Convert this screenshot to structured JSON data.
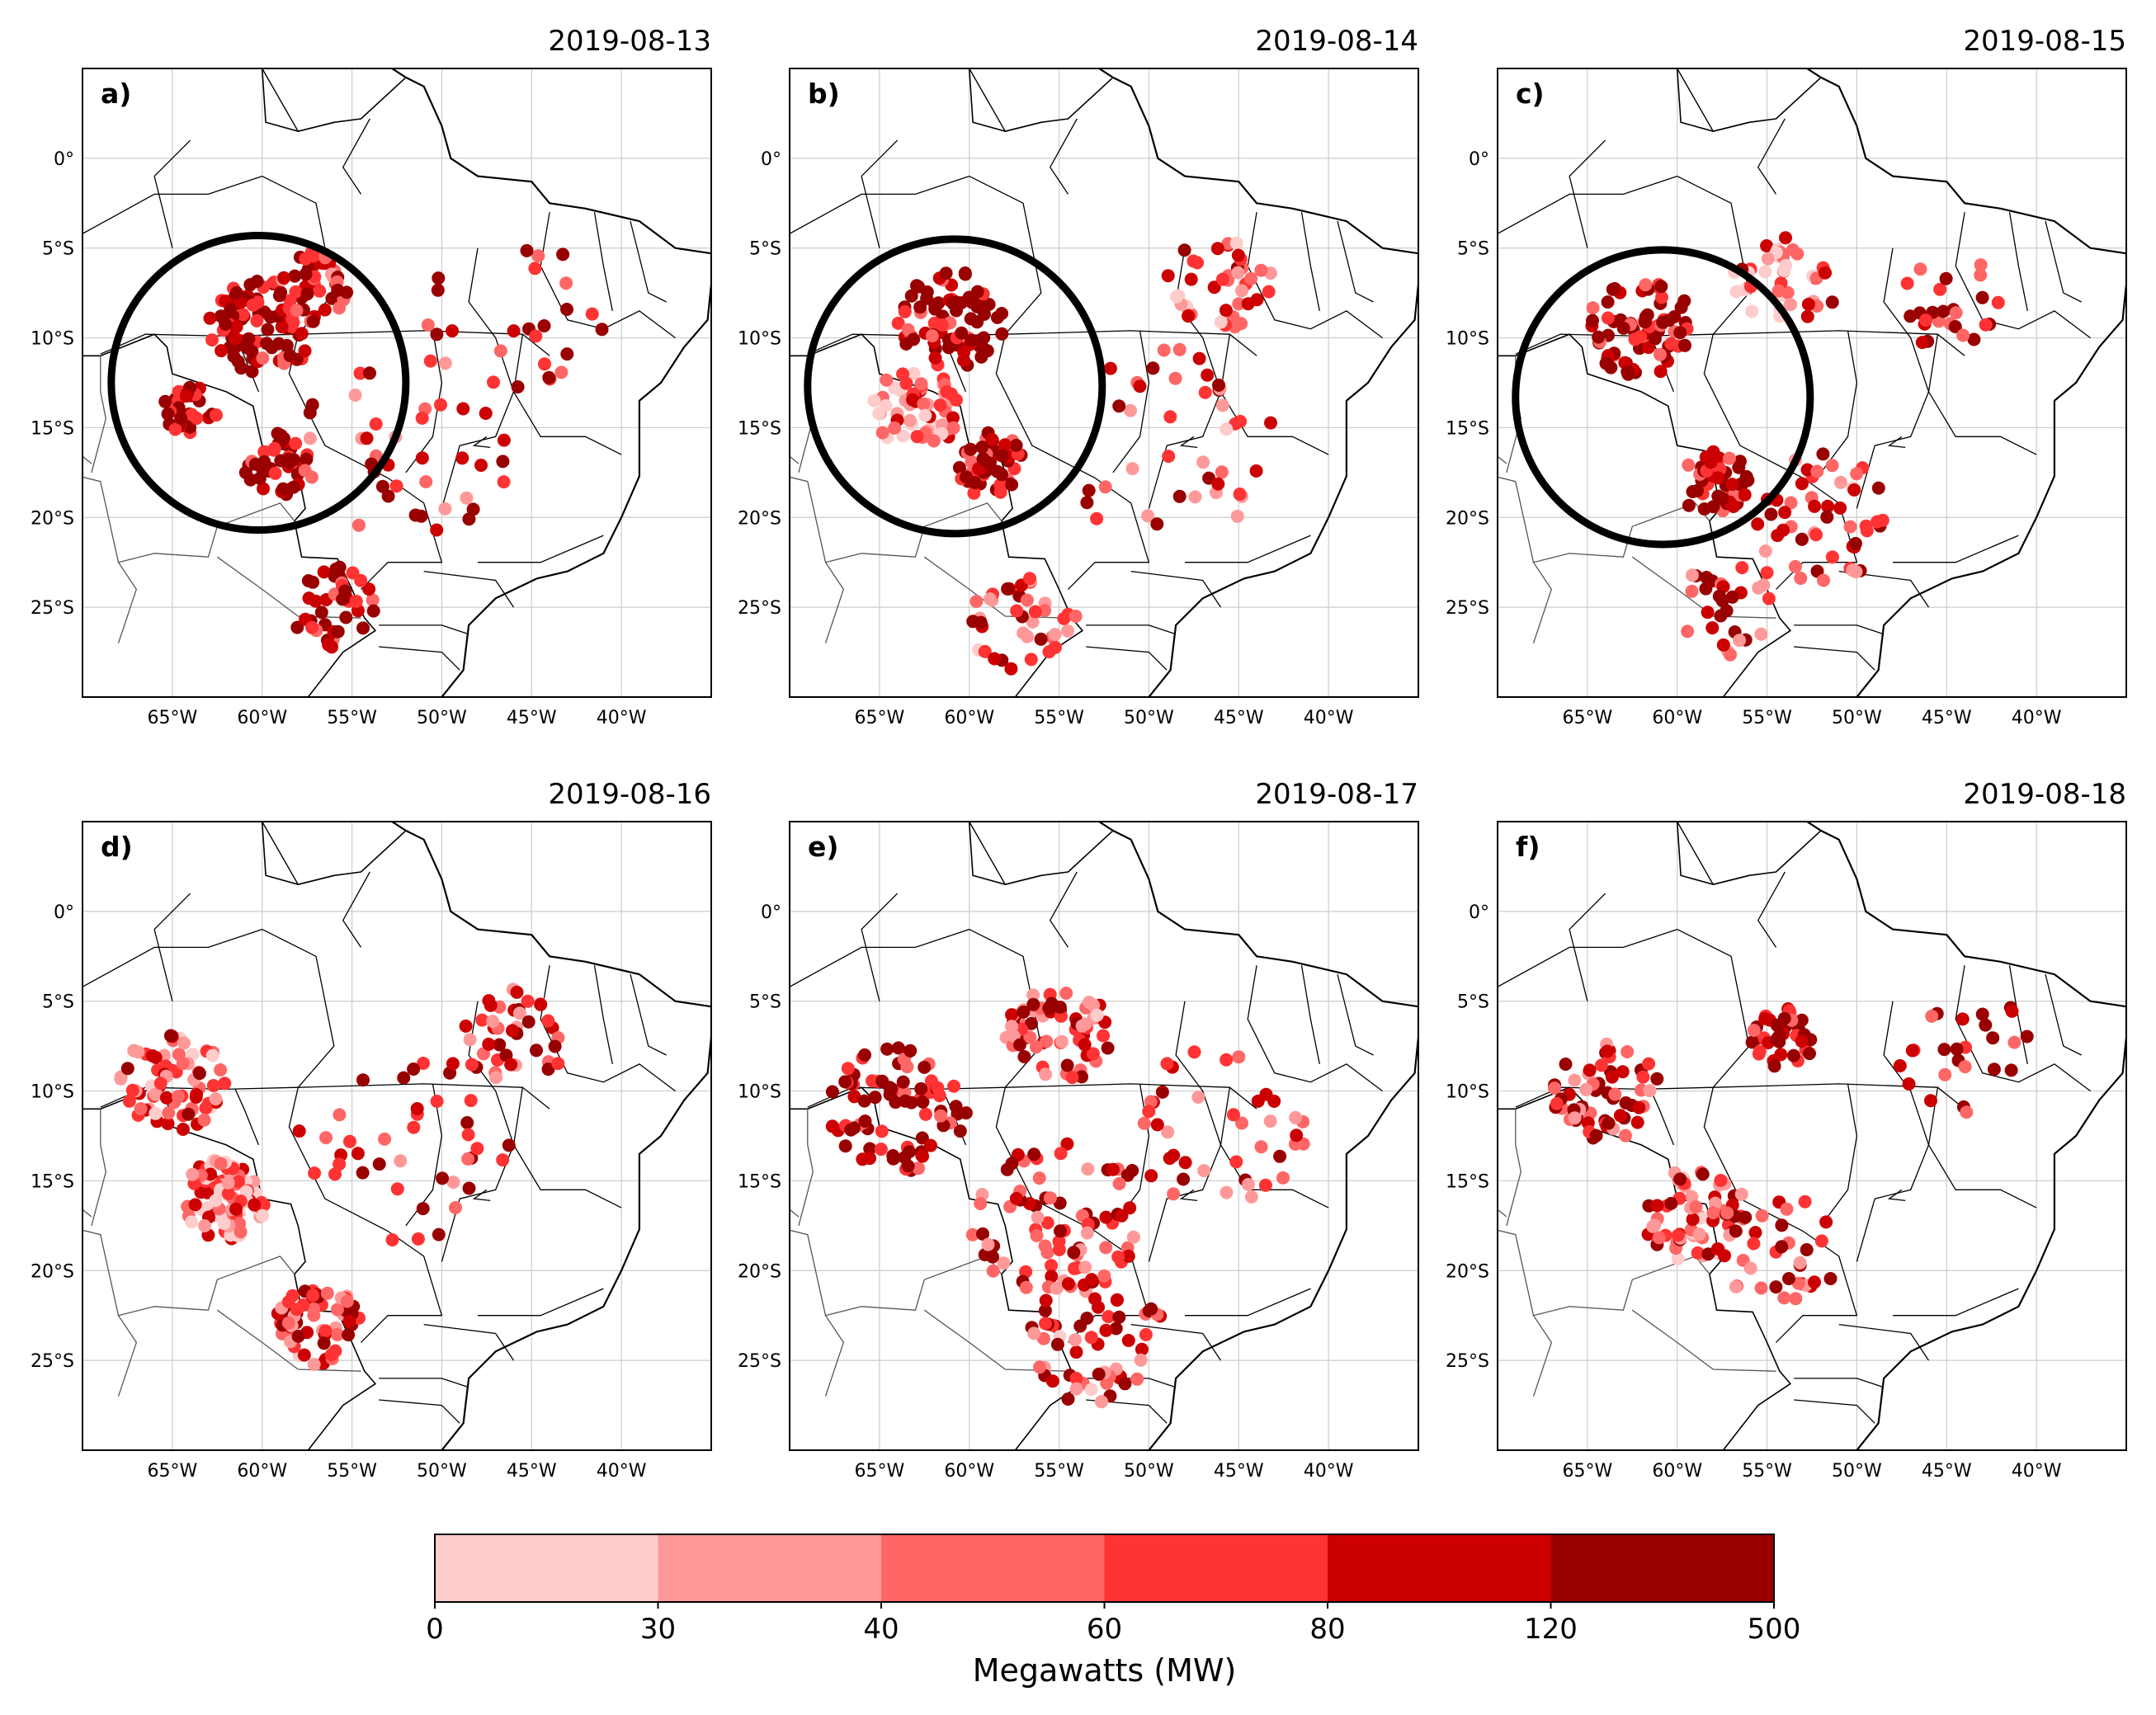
{
  "figure": {
    "panels": [
      {
        "letter": "a)",
        "date": "2019-08-13",
        "highlight_circle": true,
        "circle_center": {
          "lon": -60.2,
          "lat": -12.5
        },
        "circle_radius_deg": 8.2
      },
      {
        "letter": "b)",
        "date": "2019-08-14",
        "highlight_circle": true,
        "circle_center": {
          "lon": -60.8,
          "lat": -12.7
        },
        "circle_radius_deg": 8.2
      },
      {
        "letter": "c)",
        "date": "2019-08-15",
        "highlight_circle": true,
        "circle_center": {
          "lon": -60.8,
          "lat": -13.3
        },
        "circle_radius_deg": 8.2
      },
      {
        "letter": "d)",
        "date": "2019-08-16",
        "highlight_circle": false
      },
      {
        "letter": "e)",
        "date": "2019-08-17",
        "highlight_circle": false
      },
      {
        "letter": "f)",
        "date": "2019-08-18",
        "highlight_circle": false
      }
    ],
    "extent": {
      "lon_min": -70,
      "lon_max": -35,
      "lat_min": -30,
      "lat_max": 5
    },
    "x_ticks": [
      {
        "value": -65,
        "label": "65°W"
      },
      {
        "value": -60,
        "label": "60°W"
      },
      {
        "value": -55,
        "label": "55°W"
      },
      {
        "value": -50,
        "label": "50°W"
      },
      {
        "value": -45,
        "label": "45°W"
      },
      {
        "value": -40,
        "label": "40°W"
      }
    ],
    "y_ticks": [
      {
        "value": 0,
        "label": "0°"
      },
      {
        "value": -5,
        "label": "5°S"
      },
      {
        "value": -10,
        "label": "10°S"
      },
      {
        "value": -15,
        "label": "15°S"
      },
      {
        "value": -20,
        "label": "20°S"
      },
      {
        "value": -25,
        "label": "25°S"
      }
    ],
    "colorbar": {
      "title": "Megawatts (MW)",
      "bounds": [
        "0",
        "30",
        "40",
        "60",
        "80",
        "120",
        "500"
      ],
      "colors": [
        "#ffcccc",
        "#ff9999",
        "#ff6666",
        "#ff3333",
        "#cc0000",
        "#990000"
      ]
    }
  }
}
